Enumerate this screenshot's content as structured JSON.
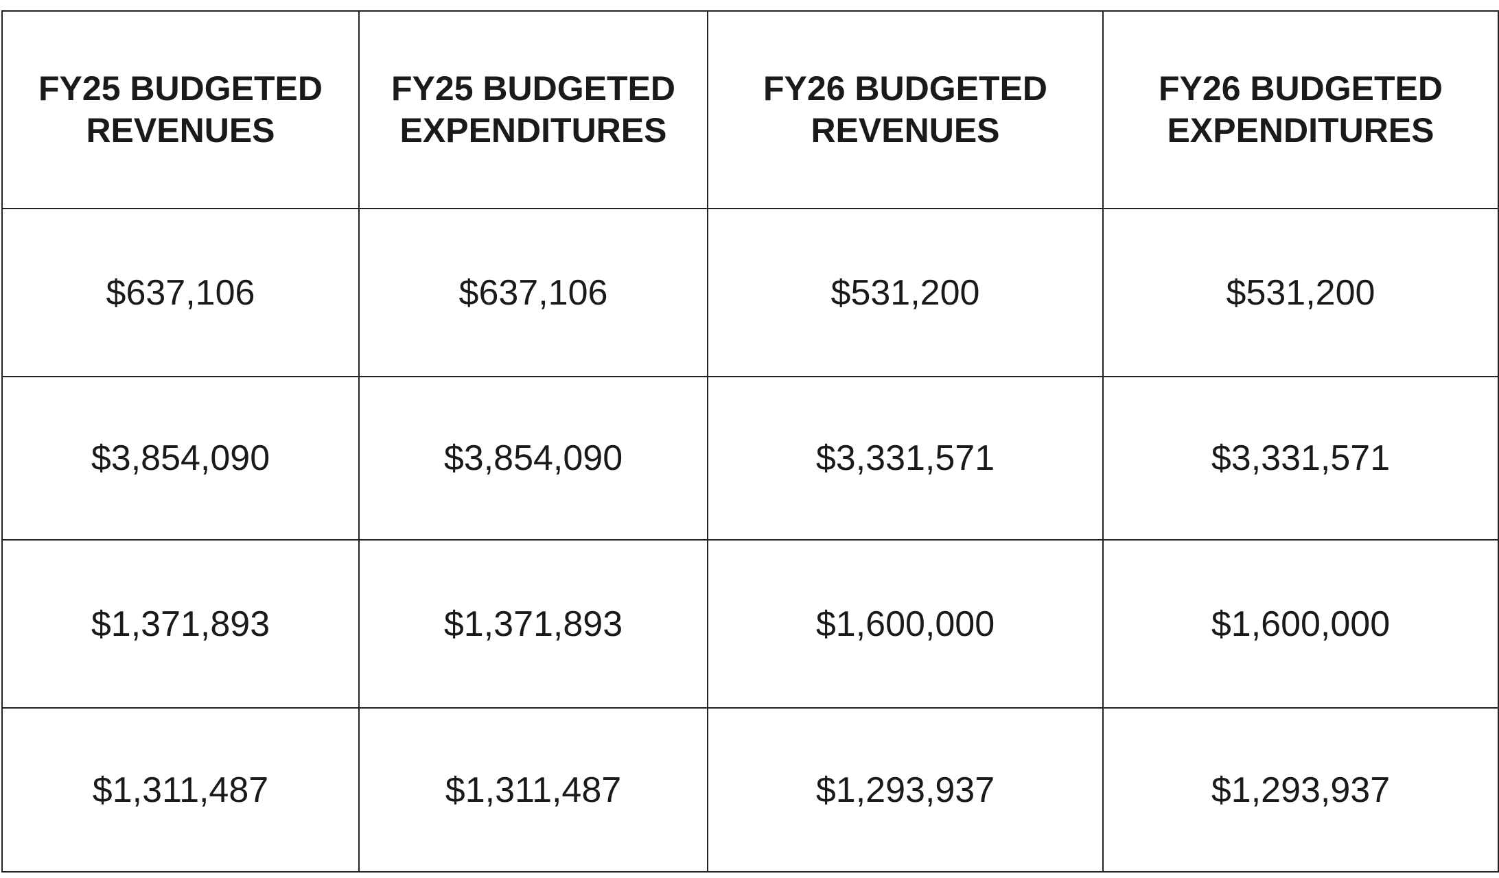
{
  "table": {
    "headers": [
      "FY25 BUDGETED REVENUES",
      "FY25 BUDGETED EXPENDITURES",
      "FY26 BUDGETED REVENUES",
      "FY26 BUDGETED EXPENDITURES"
    ],
    "rows": [
      [
        "$637,106",
        "$637,106",
        "$531,200",
        "$531,200"
      ],
      [
        "$3,854,090",
        "$3,854,090",
        "$3,331,571",
        "$3,331,571"
      ],
      [
        "$1,371,893",
        "$1,371,893",
        "$1,600,000",
        "$1,600,000"
      ],
      [
        "$1,311,487",
        "$1,311,487",
        "$1,293,937",
        "$1,293,937"
      ]
    ]
  }
}
